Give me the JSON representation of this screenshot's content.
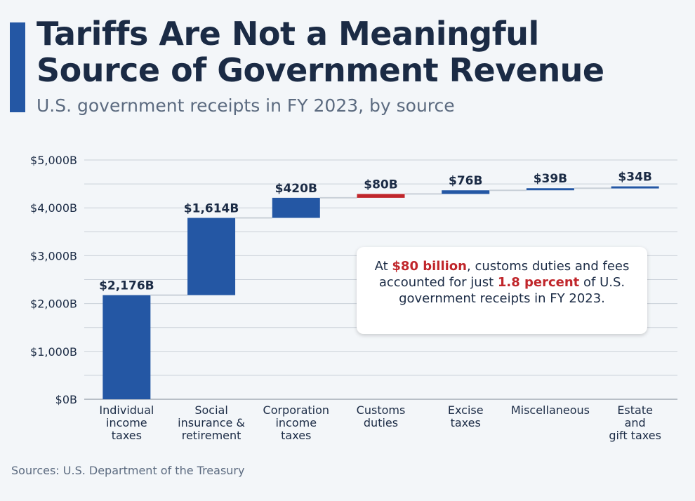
{
  "title_line1": "Tariffs Are Not a Meaningful",
  "title_line2": "Source of Government Revenue",
  "subtitle": "U.S. government receipts in FY 2023, by source",
  "callout": {
    "part1": "At ",
    "highlight1": "$80 billion",
    "part2": ", customs duties and fees accounted for just ",
    "highlight2": "1.8 percent",
    "part3": " of U.S. government receipts in FY 2023."
  },
  "source": "Sources: U.S. Department of the Treasury",
  "colors": {
    "bar_blue": "#2457a4",
    "bar_red": "#c0262b",
    "title": "#1b2b45",
    "grid": "#c9d0d8",
    "connector": "#c9d0d8"
  },
  "chart_data": {
    "type": "bar",
    "variant": "waterfall",
    "categories": [
      [
        "Individual",
        "income",
        "taxes"
      ],
      [
        "Social",
        "insurance &",
        "retirement"
      ],
      [
        "Corporation",
        "income",
        "taxes"
      ],
      [
        "Customs",
        "duties"
      ],
      [
        "Excise",
        "taxes"
      ],
      [
        "Miscellaneous"
      ],
      [
        "Estate",
        "and",
        "gift taxes"
      ]
    ],
    "values": [
      2176,
      1614,
      420,
      80,
      76,
      39,
      34
    ],
    "value_labels": [
      "$2,176B",
      "$1,614B",
      "$420B",
      "$80B",
      "$76B",
      "$39B",
      "$34B"
    ],
    "highlight_index": 3,
    "unit": "billion USD",
    "ylim": [
      0,
      5000
    ],
    "yticks": [
      0,
      1000,
      2000,
      3000,
      4000,
      5000
    ],
    "ytick_labels": [
      "$0B",
      "$1,000B",
      "$2,000B",
      "$3,000B",
      "$4,000B",
      "$5,000B"
    ],
    "grid": true,
    "legend": "none"
  }
}
